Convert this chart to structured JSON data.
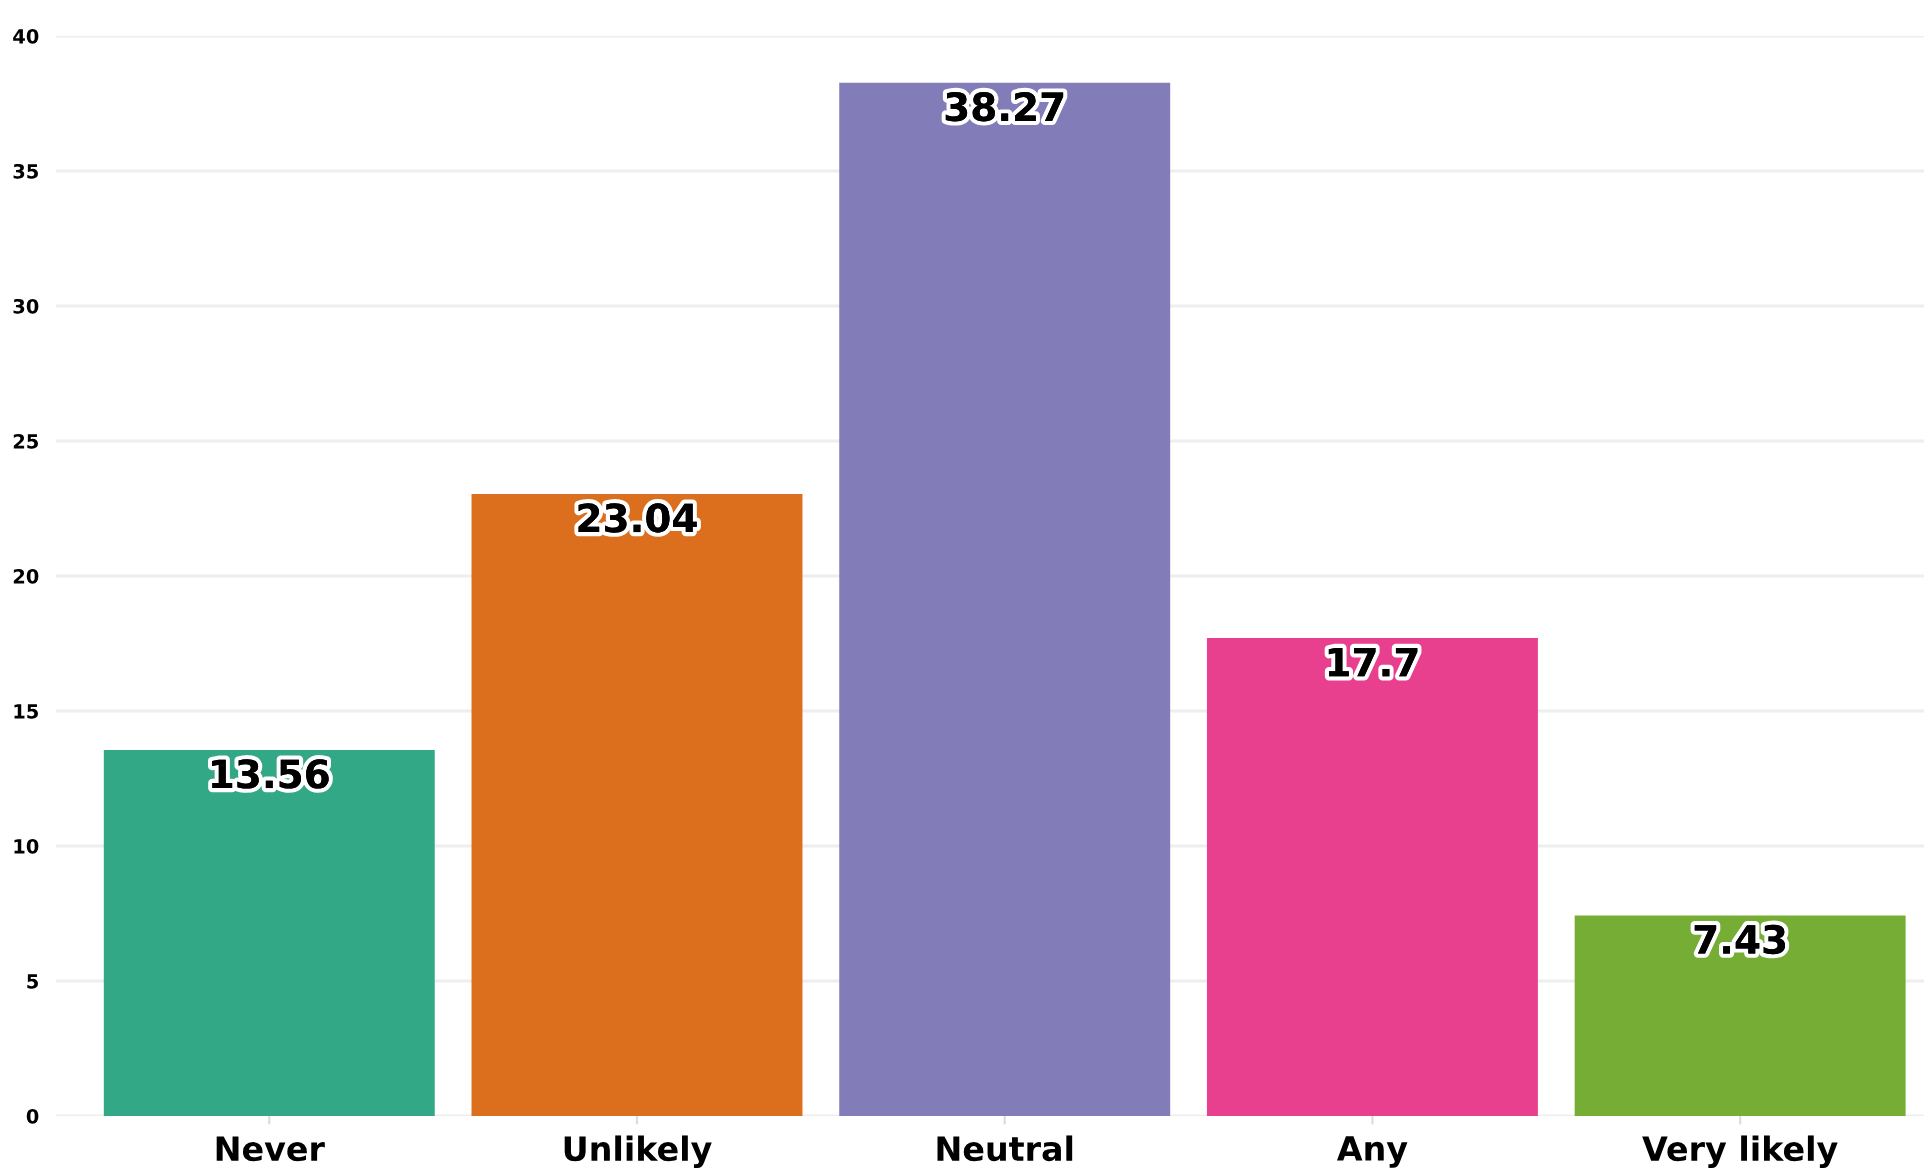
{
  "chart_data": {
    "type": "bar",
    "categories": [
      "Never",
      "Unlikely",
      "Neutral",
      "Any",
      "Very likely"
    ],
    "values": [
      13.56,
      23.04,
      38.27,
      17.7,
      7.43
    ],
    "colors": [
      "#33a886",
      "#dc6f1e",
      "#827cb9",
      "#e8408f",
      "#76ae35"
    ],
    "ylim": [
      0,
      40
    ],
    "yticks": [
      0,
      5,
      10,
      15,
      20,
      25,
      30,
      35,
      40
    ],
    "grid": "y",
    "data_labels": true
  }
}
